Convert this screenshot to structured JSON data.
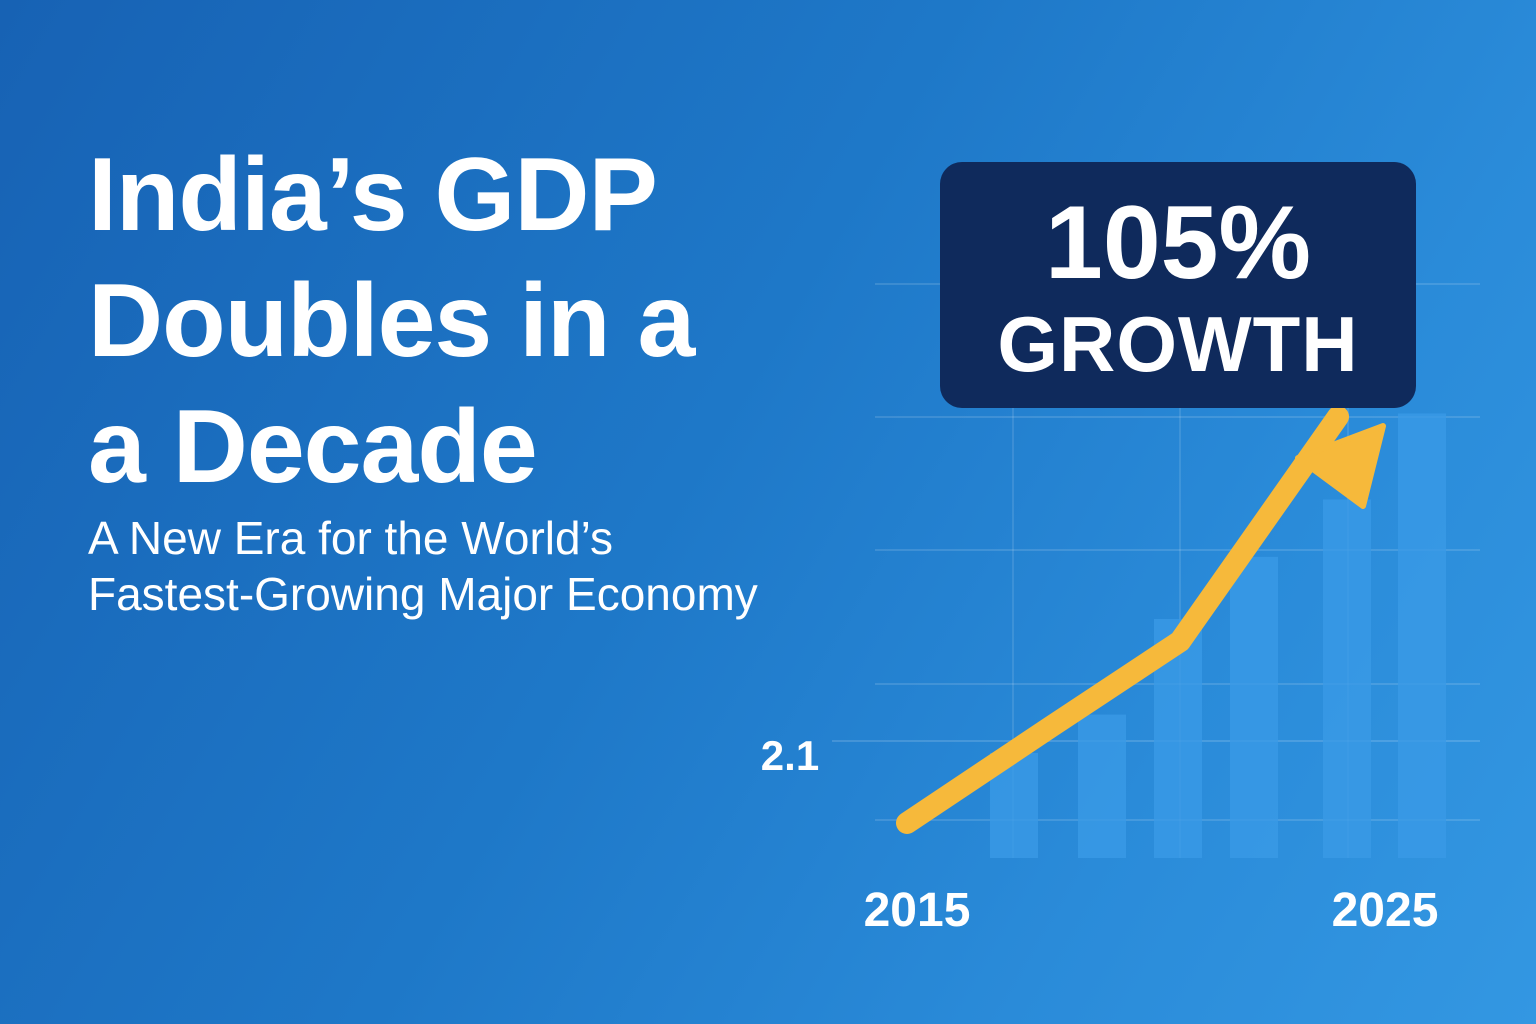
{
  "title_lines": [
    "India’s GDP",
    "Doubles in a",
    "a Decade"
  ],
  "subtitle_lines": [
    "A New Era for the World’s",
    "Fastest-Growing Major Economy"
  ],
  "callout": {
    "value": "105%",
    "label": "GROWTH"
  },
  "colors": {
    "background_start": "#1762b4",
    "background_end": "#3397e2",
    "bar": "#3a9ae6",
    "arrow": "#f6b93b",
    "callout_bg": "#0f2a5c",
    "text": "#ffffff"
  },
  "chart_data": {
    "type": "bar",
    "y_annotation": "2.1",
    "x_tick_labels": [
      "2015",
      "2025"
    ],
    "bars": [
      0.22,
      0.3,
      0.5,
      0.63,
      0.75,
      0.93
    ],
    "trend_line": [
      0,
      0.2,
      0.38,
      0.38,
      0.85
    ],
    "trend_line_arrow": true,
    "grid": true,
    "y_axis_visible": false
  }
}
